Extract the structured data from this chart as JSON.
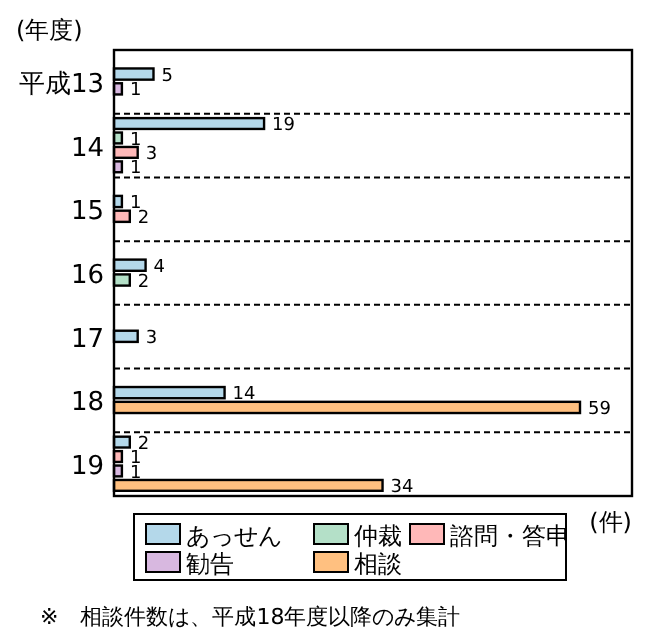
{
  "chart_data": {
    "type": "bar",
    "orientation": "horizontal",
    "ylabel": "(年度)",
    "xlabel": "(件)",
    "categories": [
      "平成13",
      "14",
      "15",
      "16",
      "17",
      "18",
      "19"
    ],
    "series": [
      {
        "name": "あっせん",
        "color": "#b4d8ea",
        "values": [
          5,
          19,
          1,
          4,
          3,
          14,
          2
        ]
      },
      {
        "name": "仲裁",
        "color": "#b4e0c8",
        "values": [
          null,
          1,
          null,
          2,
          null,
          null,
          null
        ]
      },
      {
        "name": "諮問・答申",
        "color": "#ffb8b8",
        "values": [
          null,
          3,
          2,
          null,
          null,
          null,
          1
        ]
      },
      {
        "name": "勧告",
        "color": "#d8b8e0",
        "values": [
          1,
          1,
          null,
          null,
          null,
          null,
          1
        ]
      },
      {
        "name": "相談",
        "color": "#ffc080",
        "values": [
          null,
          null,
          null,
          null,
          null,
          59,
          34
        ]
      }
    ],
    "data_labels": true,
    "grid": "y",
    "legend": "bottom",
    "annotations": [
      "※　相談件数は、平成18年度以降のみ集計"
    ]
  }
}
